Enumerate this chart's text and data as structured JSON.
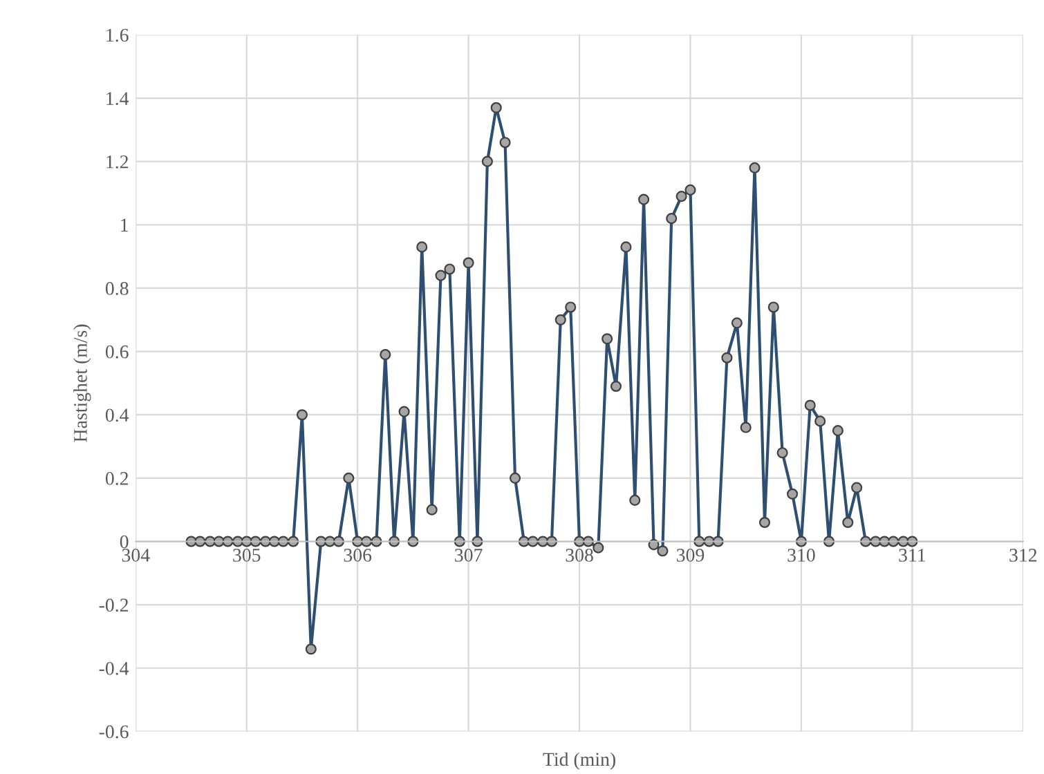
{
  "chart_data": {
    "type": "line",
    "xlabel": "Tid (min)",
    "ylabel": "Hastighet (m/s)",
    "xlim": [
      304,
      312
    ],
    "xticks": [
      304,
      305,
      306,
      307,
      308,
      309,
      310,
      311,
      312
    ],
    "ylim": [
      -0.6,
      1.6
    ],
    "yticks": [
      -0.6,
      -0.4,
      -0.2,
      0,
      0.2,
      0.4,
      0.6,
      0.8,
      1,
      1.2,
      1.4,
      1.6
    ],
    "grid": true,
    "marker": "circle",
    "line_style": "solid",
    "series": [
      {
        "color": "#2f4f72",
        "x": [
          304.5,
          304.58,
          304.67,
          304.75,
          304.83,
          304.92,
          305.0,
          305.08,
          305.17,
          305.25,
          305.33,
          305.42,
          305.5,
          305.58,
          305.67,
          305.75,
          305.83,
          305.92,
          306.0,
          306.08,
          306.17,
          306.25,
          306.33,
          306.42,
          306.5,
          306.58,
          306.67,
          306.75,
          306.83,
          306.92,
          307.0,
          307.08,
          307.17,
          307.25,
          307.33,
          307.42,
          307.5,
          307.58,
          307.67,
          307.75,
          307.83,
          307.92,
          308.0,
          308.08,
          308.17,
          308.25,
          308.33,
          308.42,
          308.5,
          308.58,
          308.67,
          308.75,
          308.83,
          308.92,
          309.0,
          309.08,
          309.17,
          309.25,
          309.33,
          309.42,
          309.5,
          309.58,
          309.67,
          309.75,
          309.83,
          309.92,
          310.0,
          310.08,
          310.17,
          310.25,
          310.33,
          310.42,
          310.5,
          310.58,
          310.67,
          310.75,
          310.83,
          310.92,
          311.0
        ],
        "values": [
          0,
          0,
          0,
          0,
          0,
          0,
          0,
          0,
          0,
          0,
          0,
          0,
          0.4,
          -0.34,
          0,
          0,
          0,
          0.2,
          0,
          0,
          0,
          0.59,
          0,
          0.41,
          0,
          0.93,
          0.1,
          0.84,
          0.86,
          0,
          0.88,
          0,
          1.2,
          1.37,
          1.26,
          0.2,
          0,
          0,
          0,
          0,
          0.7,
          0.74,
          0,
          0,
          -0.02,
          0.64,
          0.49,
          0.93,
          0.13,
          1.08,
          -0.01,
          -0.03,
          1.02,
          1.09,
          1.11,
          0,
          0,
          0,
          0.58,
          0.69,
          0.36,
          1.18,
          0.06,
          0.74,
          0.28,
          0.15,
          0,
          0.43,
          0.38,
          0,
          0.35,
          0.06,
          0.17,
          0,
          0,
          0,
          0,
          0,
          0
        ]
      }
    ]
  }
}
